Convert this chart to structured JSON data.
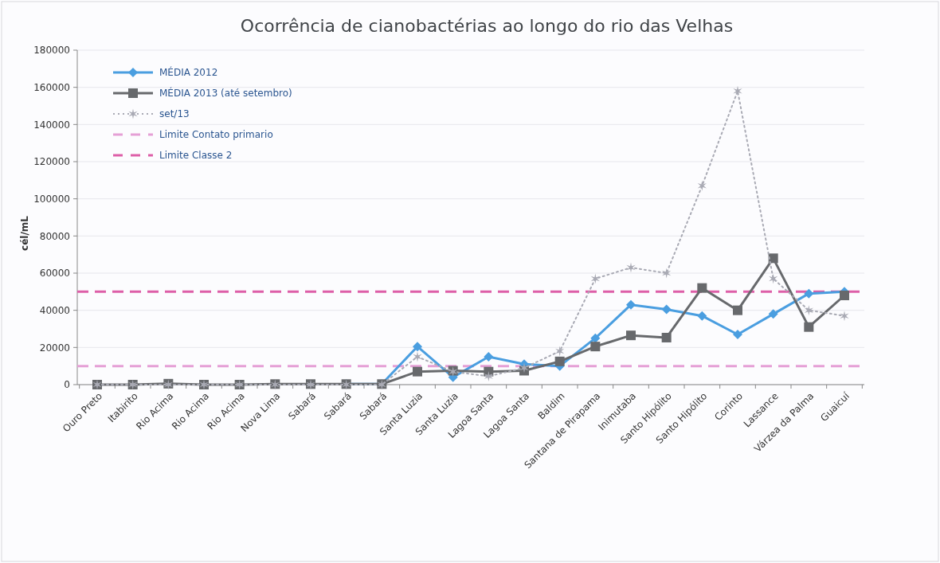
{
  "chart_data": {
    "type": "line",
    "title": "Ocorrência de cianobactérias ao longo do rio das Velhas",
    "ylabel": "cél/mL",
    "categories": [
      "Ouro Preto",
      "Itabirito",
      "Rio Acima",
      "Rio Acima",
      "Rio Acima",
      "Nova Lima",
      "Sabará",
      "Sabará",
      "Sabará",
      "Santa Luzia",
      "Santa Luzia",
      "Lagoa Santa",
      "Lagoa Santa",
      "Baldim",
      "Santana de Pirapama",
      "Inimutaba",
      "Santo Hipólito",
      "Santo Hipólito",
      "Corinto",
      "Lassance",
      "Várzea da Palma",
      "Guaicuí"
    ],
    "series": [
      {
        "name": "MÉDIA 2012",
        "color": "#4a9ee0",
        "marker": "diamond",
        "line_style": "solid",
        "values": [
          null,
          null,
          null,
          null,
          null,
          null,
          null,
          300,
          300,
          20500,
          4000,
          15000,
          11000,
          10000,
          25000,
          43000,
          40500,
          37000,
          27000,
          38000,
          49000,
          50000
        ]
      },
      {
        "name": "MÉDIA 2013 (até setembro)",
        "color": "#67696c",
        "marker": "square",
        "line_style": "solid",
        "values": [
          0,
          0,
          500,
          0,
          0,
          300,
          300,
          300,
          300,
          7000,
          7500,
          7000,
          7500,
          12500,
          20500,
          26500,
          25300,
          52000,
          40000,
          68000,
          31000,
          48000
        ]
      },
      {
        "name": "set/13",
        "color": "#a9aab4",
        "marker": "cross",
        "line_style": "dotted",
        "values": [
          0,
          0,
          0,
          0,
          0,
          0,
          0,
          0,
          0,
          15000,
          7000,
          4500,
          9000,
          18000,
          57000,
          63000,
          60000,
          107000,
          158000,
          57000,
          40000,
          37000
        ]
      }
    ],
    "ref_lines": [
      {
        "axis": "y",
        "value": 10000,
        "label": "Limite Contato primario",
        "color": "#e5a0d6",
        "line_style": "dashed"
      },
      {
        "axis": "y",
        "value": 50000,
        "label": "Limite Classe 2",
        "color": "#dd5fa8",
        "line_style": "dashed"
      }
    ],
    "ylim": [
      0,
      180000
    ],
    "yticks": [
      0,
      20000,
      40000,
      60000,
      80000,
      100000,
      120000,
      140000,
      160000,
      180000
    ],
    "grid": "y",
    "legend": "top left"
  }
}
